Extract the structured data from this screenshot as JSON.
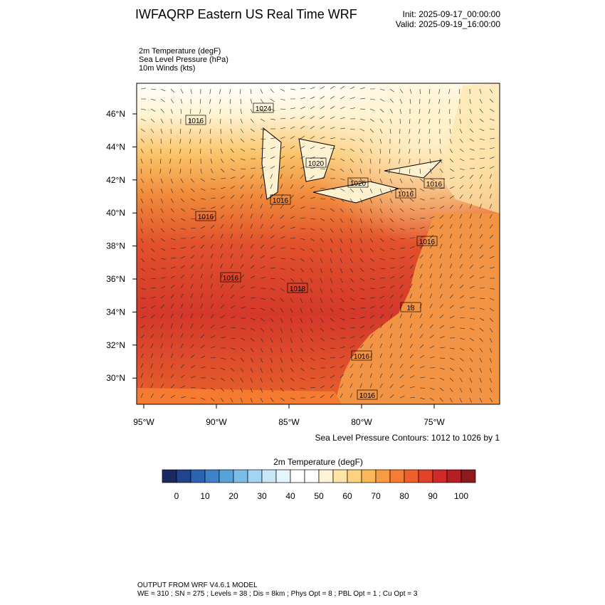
{
  "header": {
    "title": "IWFAQRP Eastern US Real Time WRF",
    "init": "Init: 2025-09-17_00:00:00",
    "valid": "Valid: 2025-09-19_16:00:00"
  },
  "fields": [
    "2m Temperature   (degF)",
    "Sea Level Pressure   (hPa)",
    "10m Winds   (kts)"
  ],
  "map": {
    "lat_labels": [
      "46°N",
      "44°N",
      "42°N",
      "40°N",
      "38°N",
      "36°N",
      "34°N",
      "32°N",
      "30°N"
    ],
    "lon_labels": [
      "95°W",
      "90°W",
      "85°W",
      "80°W",
      "75°W"
    ],
    "contour_labels": [
      "1024",
      "1016",
      "1020",
      "1020",
      "1016",
      "1016",
      "1016",
      "1016",
      "1016",
      "1016",
      "1018",
      "18",
      "1016",
      "1016"
    ],
    "contour_note": "Sea Level Pressure Contours: 1012 to 1026 by 1"
  },
  "colorbar": {
    "title": "2m Temperature  (degF)",
    "ticks": [
      0,
      10,
      20,
      30,
      40,
      50,
      60,
      70,
      80,
      90,
      100
    ],
    "colors": [
      "#1b2a5e",
      "#21448c",
      "#2c63b3",
      "#3f82c7",
      "#58a1d9",
      "#7bbde6",
      "#a3d5f2",
      "#c8e7f7",
      "#e6f4fb",
      "#ffffff",
      "#ffffff",
      "#fff4d6",
      "#fee5a6",
      "#fdd17f",
      "#fbb758",
      "#f89b43",
      "#f57d33",
      "#ee5f2b",
      "#e24229",
      "#cf2a27",
      "#b51f24",
      "#8e1a1d"
    ]
  },
  "footer": {
    "model": "OUTPUT FROM WRF V4.6.1 MODEL",
    "params": "WE = 310 ; SN = 275 ; Levels = 38 ; Dis = 8km ; Phys Opt = 8 ; PBL Opt = 1 ; Cu Opt = 3"
  }
}
